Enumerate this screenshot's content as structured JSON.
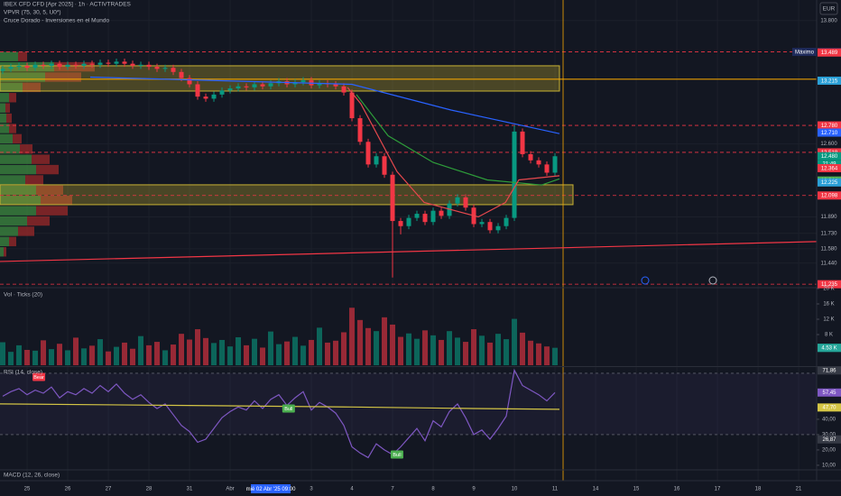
{
  "header": {
    "title": "IBEX CFD CFD [Apr 2025] · 1h · ACTIVTRADES",
    "indicator_1": "VPVR (75, 30, 5, U0*)",
    "indicator_2": "Cruce Dorado - Inversiones en el Mundo",
    "currency": "EUR"
  },
  "chart_data": [
    {
      "type": "candlestick",
      "x": [
        -0.6,
        -0.4,
        -0.2,
        0,
        0.2,
        0.4,
        0.6,
        0.8,
        1,
        1.2,
        1.4,
        1.6,
        1.8,
        2,
        2.2,
        2.4,
        2.6,
        2.8,
        3,
        3.2,
        3.4,
        3.6,
        3.8,
        4,
        4.2,
        4.4,
        4.6,
        4.8,
        5,
        5.2,
        5.4,
        5.6,
        5.8,
        6,
        6.2,
        6.4,
        6.6,
        6.8,
        7,
        7.2,
        7.4,
        7.6,
        7.8,
        8,
        8.2,
        8.4,
        8.6,
        8.8,
        9,
        9.2,
        9.4,
        9.6,
        9.8,
        10,
        10.2,
        10.4,
        10.6,
        10.8,
        11,
        11.2,
        11.4,
        11.6,
        11.8,
        12,
        12.2,
        12.4,
        12.6,
        12.8,
        13
      ],
      "open": [
        13.31,
        13.33,
        13.35,
        13.36,
        13.34,
        13.37,
        13.36,
        13.38,
        13.35,
        13.37,
        13.36,
        13.38,
        13.37,
        13.39,
        13.38,
        13.4,
        13.38,
        13.36,
        13.37,
        13.35,
        13.33,
        13.34,
        13.3,
        13.24,
        13.18,
        13.06,
        13.04,
        13.08,
        13.12,
        13.14,
        13.16,
        13.15,
        13.18,
        13.16,
        13.19,
        13.21,
        13.18,
        13.2,
        13.22,
        13.17,
        13.19,
        13.18,
        13.16,
        13.1,
        12.85,
        12.62,
        12.4,
        12.48,
        12.3,
        11.85,
        11.8,
        11.88,
        11.92,
        11.84,
        11.95,
        11.9,
        12.02,
        12.08,
        11.98,
        11.82,
        11.84,
        11.76,
        11.8,
        11.88,
        12.72,
        12.5,
        12.44,
        12.4,
        12.32
      ],
      "high": [
        13.36,
        13.38,
        13.39,
        13.39,
        13.4,
        13.4,
        13.41,
        13.41,
        13.4,
        13.4,
        13.41,
        13.41,
        13.42,
        13.42,
        13.43,
        13.43,
        13.41,
        13.4,
        13.4,
        13.38,
        13.37,
        13.37,
        13.33,
        13.27,
        13.21,
        13.09,
        13.11,
        13.15,
        13.17,
        13.19,
        13.19,
        13.21,
        13.21,
        13.22,
        13.24,
        13.24,
        13.23,
        13.25,
        13.25,
        13.22,
        13.22,
        13.21,
        13.19,
        13.13,
        12.88,
        12.65,
        12.51,
        12.51,
        12.33,
        11.88,
        11.91,
        11.95,
        11.95,
        11.98,
        11.98,
        12.05,
        12.11,
        12.11,
        12.01,
        11.87,
        11.87,
        11.83,
        11.91,
        12.78,
        12.75,
        12.53,
        12.47,
        12.43,
        12.51
      ],
      "low": [
        13.28,
        13.3,
        13.32,
        13.31,
        13.31,
        13.33,
        13.33,
        13.32,
        13.32,
        13.33,
        13.33,
        13.34,
        13.34,
        13.35,
        13.35,
        13.35,
        13.33,
        13.33,
        13.32,
        13.3,
        13.3,
        13.27,
        13.21,
        13.15,
        13.03,
        13.01,
        13.01,
        13.05,
        13.09,
        13.11,
        13.12,
        13.12,
        13.13,
        13.13,
        13.16,
        13.15,
        13.15,
        13.17,
        13.14,
        13.14,
        13.15,
        13.13,
        13.07,
        12.82,
        12.59,
        12.37,
        12.37,
        12.27,
        11.3,
        11.72,
        11.77,
        11.85,
        11.81,
        11.81,
        11.87,
        11.87,
        11.99,
        11.95,
        11.79,
        11.79,
        11.73,
        11.73,
        11.77,
        11.85,
        12.47,
        12.41,
        12.37,
        12.29,
        12.29
      ],
      "close": [
        13.33,
        13.35,
        13.36,
        13.34,
        13.37,
        13.36,
        13.38,
        13.35,
        13.37,
        13.36,
        13.38,
        13.37,
        13.39,
        13.38,
        13.4,
        13.38,
        13.36,
        13.37,
        13.35,
        13.33,
        13.34,
        13.3,
        13.24,
        13.18,
        13.06,
        13.04,
        13.08,
        13.12,
        13.14,
        13.16,
        13.15,
        13.18,
        13.16,
        13.19,
        13.21,
        13.18,
        13.2,
        13.22,
        13.17,
        13.19,
        13.18,
        13.16,
        13.1,
        12.85,
        12.62,
        12.4,
        12.48,
        12.3,
        11.85,
        11.8,
        11.88,
        11.92,
        11.84,
        11.95,
        11.9,
        12.02,
        12.08,
        11.98,
        11.82,
        11.84,
        11.76,
        11.8,
        11.88,
        12.72,
        12.5,
        12.44,
        12.4,
        12.32,
        12.48
      ],
      "up_color": "#089981",
      "down_color": "#f23645",
      "ylim": [
        11.21,
        14.0
      ],
      "yticks": [
        {
          "value": 13.8,
          "label": "13.800"
        },
        {
          "value": 12.6,
          "label": "12.600"
        },
        {
          "value": 11.89,
          "label": "11.890"
        },
        {
          "value": 11.73,
          "label": "11.730"
        },
        {
          "value": 11.58,
          "label": "11.580"
        },
        {
          "value": 11.44,
          "label": "11.440"
        }
      ],
      "xlim": [
        -0.667,
        19.444
      ],
      "xticks": [
        {
          "value": 0,
          "label": "25"
        },
        {
          "value": 1,
          "label": "26"
        },
        {
          "value": 2,
          "label": "27"
        },
        {
          "value": 3,
          "label": "28"
        },
        {
          "value": 4,
          "label": "31"
        },
        {
          "value": 5,
          "label": "Abr"
        },
        {
          "value": 7,
          "label": "3"
        },
        {
          "value": 8,
          "label": "4"
        },
        {
          "value": 9,
          "label": "7"
        },
        {
          "value": 10,
          "label": "8"
        },
        {
          "value": 11,
          "label": "9"
        },
        {
          "value": 12,
          "label": "10"
        },
        {
          "value": 13,
          "label": "11"
        },
        {
          "value": 14,
          "label": "14"
        },
        {
          "value": 15,
          "label": "15"
        },
        {
          "value": 16,
          "label": "16"
        },
        {
          "value": 17,
          "label": "17"
        },
        {
          "value": 18,
          "label": "18"
        },
        {
          "value": 19,
          "label": "21"
        }
      ],
      "crosshair": {
        "value": 6,
        "label": "mié 02 Abr '25  09:00",
        "color": "#2962ff"
      },
      "price_labels": [
        {
          "value": 13.495,
          "label": "13.495",
          "color": "#1e2a5a",
          "tag": "Máximo"
        },
        {
          "value": 13.489,
          "label": "13.489",
          "color": "#f23645"
        },
        {
          "value": 13.215,
          "label": "13.215",
          "color": "#2a9fd6"
        },
        {
          "value": 12.78,
          "label": "12.780",
          "color": "#f23645"
        },
        {
          "value": 12.71,
          "label": "12.710",
          "color": "#2962ff"
        },
        {
          "value": 12.518,
          "label": "12.518",
          "color": "#f23645"
        },
        {
          "value": 12.48,
          "label": "12.480",
          "color": "#089981",
          "countdown": "21:49"
        },
        {
          "value": 12.364,
          "label": "12.364",
          "color": "#f23645"
        },
        {
          "value": 12.244,
          "label": "12.244",
          "color": "#4caf50"
        },
        {
          "value": 12.225,
          "label": "12.225",
          "color": "#2a9fd6"
        },
        {
          "value": 12.098,
          "label": "12.098",
          "color": "#f23645"
        },
        {
          "value": 11.235,
          "label": "11.235",
          "color": "#f23645"
        }
      ],
      "levels": [
        13.495,
        12.78,
        12.518,
        12.098,
        11.235
      ],
      "level_color": "#f23645",
      "zones": [
        [
          13.114,
          13.36
        ],
        [
          12.009,
          12.202
        ]
      ],
      "zone_color": "#c9b233",
      "drawings": {
        "hline": 13.23,
        "vline": 13.2,
        "color": "#f7a600"
      },
      "lines": [
        {
          "color": "#2962ff",
          "x": [
            1.556,
            8.0,
            10.44,
            13.11
          ],
          "values": [
            13.25,
            13.18,
            12.93,
            12.7
          ]
        },
        {
          "color": "#2e9d3a",
          "x": [
            8.11,
            8.89,
            10.0,
            11.33,
            12.67,
            13.11
          ],
          "values": [
            13.08,
            12.68,
            12.42,
            12.25,
            12.2,
            12.26
          ]
        },
        {
          "color": "#e5484d",
          "x": [
            7.89,
            8.22,
            9.11,
            9.78,
            11.11,
            11.78,
            12.11,
            13.11
          ],
          "values": [
            13.15,
            12.99,
            12.33,
            12.03,
            11.89,
            12.03,
            12.25,
            12.29
          ]
        }
      ],
      "trendline": {
        "color": "#f23645",
        "x": [
          -0.667,
          19.444
        ],
        "values": [
          11.456,
          11.65
        ]
      },
      "volume_profile": {
        "up_color": "#3d8b40",
        "down_color": "#9c2a2a",
        "prices": [
          13.45,
          13.35,
          13.25,
          13.15,
          13.05,
          12.95,
          12.85,
          12.75,
          12.65,
          12.55,
          12.45,
          12.35,
          12.25,
          12.15,
          12.05,
          11.95,
          11.85,
          11.75,
          11.65,
          11.55
        ],
        "up": [
          20,
          60,
          50,
          25,
          10,
          6,
          7,
          10,
          14,
          22,
          35,
          40,
          28,
          40,
          45,
          40,
          30,
          20,
          10,
          4
        ],
        "down": [
          10,
          45,
          40,
          20,
          8,
          5,
          6,
          8,
          10,
          14,
          20,
          25,
          20,
          30,
          35,
          35,
          25,
          18,
          8,
          3
        ]
      }
    },
    {
      "type": "bar",
      "title": "Vol · Ticks (20)",
      "values": [
        6000,
        3500,
        5200,
        4000,
        3800,
        6500,
        4200,
        5600,
        3900,
        7200,
        4400,
        5100,
        6800,
        3600,
        4800,
        5900,
        4300,
        7600,
        5200,
        6100,
        3900,
        5400,
        8200,
        6700,
        9400,
        7100,
        5800,
        6600,
        4900,
        7300,
        5200,
        6900,
        4600,
        8800,
        5500,
        6200,
        7400,
        5100,
        6600,
        9800,
        5900,
        6400,
        8600,
        15000,
        11800,
        9700,
        8900,
        12500,
        10600,
        7400,
        8300,
        6900,
        9100,
        7800,
        6600,
        8900,
        7200,
        6100,
        9400,
        7700,
        5900,
        8200,
        6800,
        12100,
        8500,
        6400,
        5700,
        4900,
        4551
      ],
      "ylim": [
        0,
        20000
      ],
      "yticks": [
        {
          "value": 8000,
          "label": "8 K"
        },
        {
          "value": 12000,
          "label": "12 K"
        },
        {
          "value": 16000,
          "label": "16 K"
        },
        {
          "value": 20000,
          "label": "20 K"
        }
      ],
      "badges": [
        {
          "value": 4551,
          "label": "4.551",
          "color": "#089981"
        },
        {
          "value": 4530,
          "label": "4.53 K",
          "color": "#26a69a"
        }
      ]
    },
    {
      "type": "line",
      "title": "RSI (14, close)",
      "series": [
        {
          "color": "#7e57c2",
          "values": [
            55,
            58,
            60,
            56,
            59,
            57,
            61,
            54,
            58,
            56,
            60,
            57,
            62,
            58,
            63,
            57,
            53,
            56,
            51,
            47,
            50,
            43,
            36,
            32,
            25,
            27,
            34,
            41,
            45,
            48,
            46,
            52,
            47,
            53,
            56,
            49,
            54,
            58,
            46,
            51,
            48,
            44,
            36,
            22,
            18,
            15,
            24,
            20,
            17,
            22,
            28,
            34,
            26,
            39,
            35,
            45,
            50,
            41,
            30,
            33,
            27,
            34,
            42,
            72,
            62,
            59,
            56,
            52,
            57.45
          ]
        },
        {
          "color": "#d4c545",
          "x": [
            -0.667,
            4,
            8,
            11,
            13.11
          ],
          "values": [
            50,
            49,
            48,
            47,
            46.5
          ]
        }
      ],
      "ylim": [
        7.6,
        73.5
      ],
      "yticks": [
        {
          "value": 10,
          "label": "10,00"
        },
        {
          "value": 20,
          "label": "20,00"
        },
        {
          "value": 30,
          "label": "30,00"
        },
        {
          "value": 40,
          "label": "40,00"
        }
      ],
      "bands": [
        30,
        70
      ],
      "badges": [
        {
          "value": 71.86,
          "label": "71,86",
          "color": "#363a45"
        },
        {
          "value": 57.45,
          "label": "57,45",
          "color": "#7e57c2"
        },
        {
          "value": 47.7,
          "label": "47,70",
          "color": "#d4c545"
        },
        {
          "value": 26.87,
          "label": "26,87",
          "color": "#363a45"
        }
      ],
      "signals": [
        {
          "label": "Bear",
          "x": 0.29,
          "value": 67.6,
          "color": "#f23645"
        },
        {
          "label": "Bull",
          "x": 6.44,
          "value": 47,
          "color": "#4caf50"
        },
        {
          "label": "Bull",
          "x": 9.11,
          "value": 17,
          "color": "#4caf50"
        }
      ]
    },
    {
      "type": "macd",
      "title": "MACD (12, 26, close)"
    }
  ]
}
